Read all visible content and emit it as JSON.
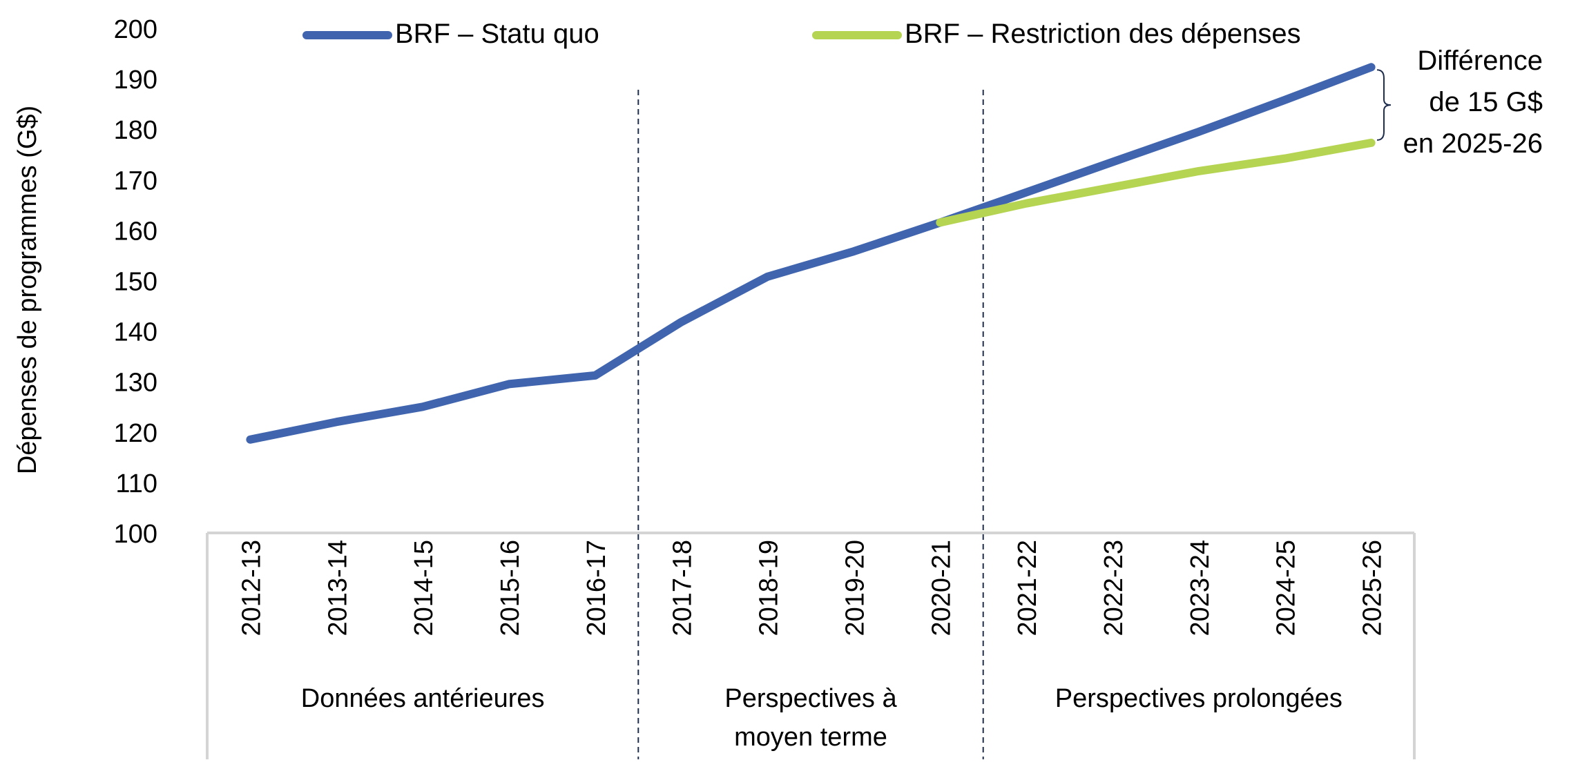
{
  "chart_data": {
    "type": "line",
    "ylabel": "Dépenses de programmes (G$)",
    "ylim": [
      100,
      200
    ],
    "yticks": [
      100,
      110,
      120,
      130,
      140,
      150,
      160,
      170,
      180,
      190,
      200
    ],
    "categories": [
      "2012-13",
      "2013-14",
      "2014-15",
      "2015-16",
      "2016-17",
      "2017-18",
      "2018-19",
      "2019-20",
      "2020-21",
      "2021-22",
      "2022-23",
      "2023-24",
      "2024-25",
      "2025-26"
    ],
    "series": [
      {
        "name": "BRF – Statu quo",
        "color": "#4065AE",
        "values": [
          118.5,
          122,
          125,
          129.5,
          131.2,
          141.8,
          150.8,
          155.8,
          161.5,
          167.5,
          173.5,
          179.5,
          185.8,
          192.3
        ]
      },
      {
        "name": "BRF – Restriction des dépenses",
        "color": "#B5D451",
        "start_index": 8,
        "values": [
          null,
          null,
          null,
          null,
          null,
          null,
          null,
          null,
          161.5,
          165.3,
          168.5,
          171.7,
          174.2,
          177.3
        ]
      }
    ],
    "groups": [
      {
        "label_lines": [
          "Données antérieures"
        ],
        "start": 0,
        "end": 4
      },
      {
        "label_lines": [
          "Perspectives à",
          "moyen terme"
        ],
        "start": 5,
        "end": 8
      },
      {
        "label_lines": [
          "Perspectives prolongées"
        ],
        "start": 9,
        "end": 13
      }
    ],
    "annotation": {
      "lines": [
        "Différence",
        "de 15 G$",
        "en 2025-26"
      ]
    },
    "grid": false,
    "legend_position": "top"
  }
}
